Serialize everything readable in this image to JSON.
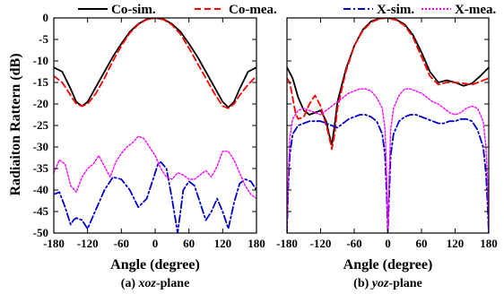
{
  "colors": {
    "co_sim": "#000000",
    "co_mea": "#ff0000",
    "x_sim": "#0000cc",
    "x_mea": "#ff00ff"
  },
  "legend": {
    "co_sim": "Co-sim.",
    "co_mea": "Co-mea.",
    "x_sim": "X-sim.",
    "x_mea": "X-mea."
  },
  "ylabel": "Radiaiton Rattern (dB)",
  "chart_data": [
    {
      "type": "line",
      "caption_prefix": "(a) ",
      "caption_italic": "xoz",
      "caption_suffix": "-plane",
      "xlabel": "Angle (degree)",
      "xlim": [
        -180,
        180
      ],
      "ylim": [
        -50,
        0
      ],
      "xticks": [
        -180,
        -120,
        -60,
        0,
        60,
        120,
        180
      ],
      "yticks": [
        0,
        -5,
        -10,
        -15,
        -20,
        -25,
        -30,
        -35,
        -40,
        -45,
        -50
      ],
      "series": [
        {
          "name": "Co-sim.",
          "key": "co_sim",
          "dash": "",
          "x": [
            -180,
            -165,
            -150,
            -140,
            -130,
            -120,
            -105,
            -90,
            -75,
            -60,
            -45,
            -30,
            -15,
            0,
            15,
            30,
            45,
            60,
            75,
            90,
            105,
            120,
            130,
            140,
            150,
            165,
            180
          ],
          "y": [
            -11.5,
            -12.5,
            -16.5,
            -19.5,
            -20.5,
            -19.5,
            -16,
            -12.5,
            -9,
            -6,
            -3.2,
            -1.4,
            -0.3,
            0,
            -0.3,
            -1.4,
            -3.2,
            -6,
            -9,
            -12.5,
            -16,
            -19.5,
            -20.8,
            -19.5,
            -16.5,
            -12.5,
            -11.5
          ]
        },
        {
          "name": "Co-mea.",
          "key": "co_mea",
          "dash": "7,4",
          "x": [
            -180,
            -165,
            -150,
            -140,
            -130,
            -120,
            -105,
            -90,
            -75,
            -60,
            -45,
            -30,
            -15,
            0,
            15,
            30,
            45,
            60,
            75,
            90,
            105,
            120,
            130,
            140,
            150,
            165,
            180
          ],
          "y": [
            -13.5,
            -15,
            -18,
            -20,
            -20.5,
            -20,
            -17.5,
            -14,
            -10,
            -6.5,
            -3.5,
            -1.5,
            -0.4,
            0,
            -0.4,
            -1.6,
            -3.8,
            -7,
            -10.5,
            -14,
            -17.5,
            -20.5,
            -21,
            -20,
            -18,
            -15.5,
            -13.5
          ]
        },
        {
          "name": "X-sim.",
          "key": "x_sim",
          "dash": "8,3,2,3",
          "x": [
            -180,
            -170,
            -160,
            -150,
            -145,
            -140,
            -130,
            -120,
            -110,
            -100,
            -90,
            -75,
            -60,
            -45,
            -30,
            -15,
            -5,
            0,
            5,
            10,
            20,
            30,
            40,
            50,
            60,
            70,
            80,
            90,
            100,
            110,
            120,
            130,
            140,
            150,
            160,
            170,
            180
          ],
          "y": [
            -41,
            -40.5,
            -44,
            -48,
            -47,
            -46.5,
            -47,
            -49,
            -46,
            -43,
            -40,
            -37,
            -37.5,
            -40,
            -44,
            -42,
            -38,
            -36,
            -34,
            -33.5,
            -35,
            -42,
            -50,
            -40,
            -38,
            -39,
            -43,
            -47,
            -45,
            -42,
            -45,
            -49,
            -43,
            -38.5,
            -37.5,
            -38,
            -40
          ]
        },
        {
          "name": "X-mea.",
          "key": "x_mea",
          "dash": "2,2",
          "x": [
            -180,
            -170,
            -160,
            -150,
            -140,
            -130,
            -120,
            -110,
            -100,
            -90,
            -80,
            -70,
            -60,
            -50,
            -40,
            -30,
            -20,
            -10,
            0,
            10,
            20,
            30,
            40,
            50,
            60,
            70,
            80,
            90,
            100,
            110,
            120,
            130,
            140,
            150,
            160,
            170,
            180
          ],
          "y": [
            -36,
            -33,
            -34,
            -39,
            -40.5,
            -37,
            -35,
            -34,
            -32,
            -34.5,
            -37,
            -33.5,
            -31.5,
            -30,
            -29,
            -27.5,
            -28,
            -30,
            -32,
            -35,
            -37,
            -37.5,
            -36,
            -36.5,
            -37.5,
            -37.5,
            -36.5,
            -35.5,
            -37,
            -34.5,
            -31,
            -31,
            -33,
            -36,
            -39,
            -41,
            -42
          ]
        }
      ]
    },
    {
      "type": "line",
      "caption_prefix": "(b) ",
      "caption_italic": "yoz",
      "caption_suffix": "-plane",
      "xlabel": "Angle (degree)",
      "xlim": [
        -180,
        180
      ],
      "ylim": [
        -50,
        0
      ],
      "xticks": [
        -180,
        -120,
        -60,
        0,
        60,
        120,
        180
      ],
      "yticks": [
        0,
        -5,
        -10,
        -15,
        -20,
        -25,
        -30,
        -35,
        -40,
        -45,
        -50
      ],
      "series": [
        {
          "name": "Co-sim.",
          "key": "co_sim",
          "dash": "",
          "x": [
            -180,
            -170,
            -160,
            -150,
            -140,
            -130,
            -120,
            -110,
            -105,
            -100,
            -95,
            -90,
            -75,
            -60,
            -45,
            -30,
            -15,
            0,
            15,
            30,
            45,
            60,
            75,
            90,
            105,
            120,
            135,
            150,
            165,
            180
          ],
          "y": [
            -11.5,
            -14,
            -18.5,
            -21.5,
            -22.5,
            -22,
            -21.5,
            -24,
            -27,
            -29.5,
            -25,
            -19.5,
            -12,
            -6.5,
            -2.8,
            -0.8,
            -0.1,
            0,
            -0.4,
            -1.5,
            -4,
            -8,
            -12.5,
            -15,
            -14.5,
            -15,
            -15.8,
            -15.2,
            -13.5,
            -11.5
          ]
        },
        {
          "name": "Co-mea.",
          "key": "co_mea",
          "dash": "7,4",
          "x": [
            -180,
            -175,
            -170,
            -165,
            -160,
            -150,
            -140,
            -130,
            -120,
            -110,
            -105,
            -100,
            -95,
            -90,
            -75,
            -60,
            -45,
            -30,
            -15,
            0,
            15,
            30,
            45,
            60,
            75,
            90,
            105,
            120,
            135,
            150,
            165,
            180
          ],
          "y": [
            -14,
            -15,
            -18.5,
            -22,
            -23.5,
            -23,
            -20,
            -18,
            -20.5,
            -25,
            -27.5,
            -30.5,
            -27,
            -21,
            -12.5,
            -6.5,
            -3,
            -1,
            -0.2,
            0,
            -0.5,
            -1.8,
            -4.5,
            -9,
            -13.5,
            -15.5,
            -15,
            -15,
            -15.2,
            -15.5,
            -14.8,
            -14
          ]
        },
        {
          "name": "X-sim.",
          "key": "x_sim",
          "dash": "8,3,2,3",
          "x": [
            -180,
            -178,
            -175,
            -170,
            -160,
            -150,
            -140,
            -130,
            -120,
            -110,
            -100,
            -90,
            -80,
            -70,
            -60,
            -50,
            -40,
            -30,
            -20,
            -10,
            -5,
            -2,
            0,
            2,
            5,
            10,
            20,
            30,
            40,
            50,
            60,
            70,
            80,
            90,
            100,
            110,
            120,
            130,
            140,
            150,
            160,
            170,
            175,
            178,
            180
          ],
          "y": [
            -50,
            -40,
            -32,
            -27,
            -25,
            -24.5,
            -24,
            -24,
            -24,
            -24.5,
            -25,
            -25.5,
            -24.5,
            -23.5,
            -23,
            -22.5,
            -22.5,
            -23,
            -24,
            -27,
            -32,
            -42,
            -50,
            -42,
            -32,
            -27,
            -24,
            -23,
            -22.5,
            -22.5,
            -23,
            -23.5,
            -24,
            -24.5,
            -24.5,
            -24,
            -24,
            -23.5,
            -23.5,
            -24,
            -26,
            -30,
            -36,
            -44,
            -50
          ]
        },
        {
          "name": "X-mea.",
          "key": "x_mea",
          "dash": "2,2",
          "x": [
            -180,
            -178,
            -175,
            -170,
            -160,
            -150,
            -140,
            -130,
            -120,
            -110,
            -100,
            -90,
            -80,
            -70,
            -60,
            -50,
            -40,
            -30,
            -20,
            -10,
            -5,
            -2,
            0,
            2,
            5,
            10,
            20,
            30,
            40,
            50,
            60,
            70,
            80,
            90,
            100,
            110,
            120,
            130,
            140,
            150,
            160,
            170,
            175,
            178,
            180
          ],
          "y": [
            -50,
            -38,
            -28,
            -23.5,
            -21.5,
            -21,
            -21.5,
            -22,
            -22.5,
            -21.5,
            -20.5,
            -19.5,
            -18.5,
            -17.5,
            -17,
            -16.5,
            -16.5,
            -17,
            -18.5,
            -21,
            -26,
            -38,
            -50,
            -38,
            -26,
            -21,
            -18,
            -16.5,
            -16.5,
            -17,
            -17.5,
            -18.5,
            -19.5,
            -20,
            -21,
            -22,
            -22.5,
            -22,
            -21,
            -20.5,
            -21,
            -24,
            -30,
            -38,
            -50
          ]
        }
      ]
    }
  ]
}
